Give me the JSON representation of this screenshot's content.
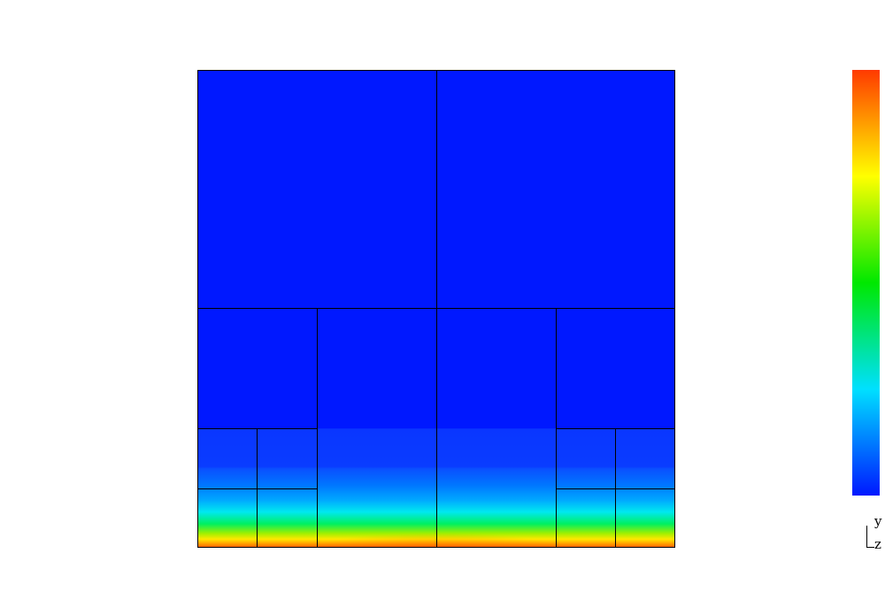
{
  "view": {
    "axis_triad": {
      "vertical_axis_label": "y",
      "horizontal_axis_label": "z"
    }
  },
  "field": {
    "colormap": [
      "#0018ff",
      "#00e0ff",
      "#00e800",
      "#ffff00",
      "#ff3a00"
    ],
    "domain_color": "#0018ff",
    "gradient_bands": [
      {
        "t": 0.0,
        "color": "#0018ff"
      },
      {
        "t": 0.75,
        "color": "#0018ff"
      },
      {
        "t": 0.751,
        "color": "#0a36ff"
      },
      {
        "t": 0.83,
        "color": "#0a3cff"
      },
      {
        "t": 0.835,
        "color": "#0a50ff"
      },
      {
        "t": 0.87,
        "color": "#0078ff"
      },
      {
        "t": 0.9,
        "color": "#00a8ff"
      },
      {
        "t": 0.925,
        "color": "#00e8f0"
      },
      {
        "t": 0.95,
        "color": "#00f060"
      },
      {
        "t": 0.97,
        "color": "#a0f000"
      },
      {
        "t": 0.982,
        "color": "#ffe800"
      },
      {
        "t": 0.992,
        "color": "#ff9a00"
      },
      {
        "t": 1.0,
        "color": "#ff5a00"
      }
    ]
  },
  "mesh": {
    "line_color": "#000000"
  }
}
